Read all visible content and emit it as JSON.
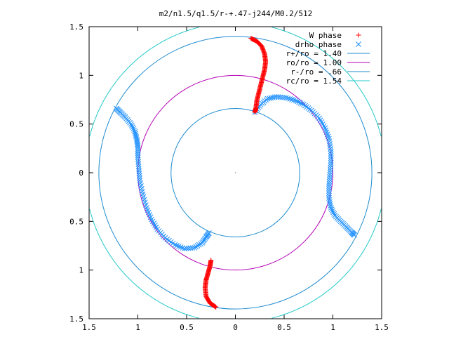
{
  "chart_data": {
    "type": "scatter",
    "title": "m2/n1.5/q1.5/r-+.47-j244/M0.2/512",
    "xlabel": "",
    "ylabel": "",
    "xlim": [
      -1.5,
      1.5
    ],
    "ylim": [
      -1.5,
      1.5
    ],
    "x_tick_labels": [
      "1.5",
      "1",
      "0.5",
      "0",
      "0.5",
      "1",
      "1.5"
    ],
    "y_tick_labels": [
      "1.5",
      "1",
      "0.5",
      "0",
      "0.5",
      "1",
      "1.5"
    ],
    "grid": false,
    "legend_position": "top-right",
    "circles": [
      {
        "name": "r+/ro = 1.40",
        "radius": 1.4,
        "color": "#1f8ccf"
      },
      {
        "name": "ro/ro = 1.00",
        "radius": 1.0,
        "color": "#b400b4"
      },
      {
        "name": "r-/ro = .66",
        "radius": 0.66,
        "color": "#1f8ccf"
      },
      {
        "name": "rc/ro = 1.54",
        "radius": 1.54,
        "color": "#22c8c8"
      }
    ],
    "series": [
      {
        "name": "W phase",
        "marker": "plus",
        "color": "#ff0000",
        "arms": [
          [
            [
              0.16,
              1.38
            ],
            [
              0.22,
              1.35
            ],
            [
              0.27,
              1.3
            ],
            [
              0.3,
              1.22
            ],
            [
              0.31,
              1.14
            ],
            [
              0.3,
              1.06
            ],
            [
              0.28,
              0.98
            ],
            [
              0.26,
              0.9
            ],
            [
              0.24,
              0.82
            ],
            [
              0.22,
              0.74
            ],
            [
              0.21,
              0.66
            ],
            [
              0.2,
              0.62
            ]
          ],
          [
            [
              -0.2,
              -1.38
            ],
            [
              -0.26,
              -1.34
            ],
            [
              -0.3,
              -1.27
            ],
            [
              -0.31,
              -1.18
            ],
            [
              -0.3,
              -1.1
            ],
            [
              -0.28,
              -1.03
            ],
            [
              -0.26,
              -0.96
            ],
            [
              -0.25,
              -0.9
            ]
          ]
        ]
      },
      {
        "name": "drho phase",
        "marker": "cross",
        "color": "#1e90ff",
        "arms": [
          [
            [
              0.2,
              0.62
            ],
            [
              0.26,
              0.7
            ],
            [
              0.33,
              0.76
            ],
            [
              0.42,
              0.78
            ],
            [
              0.52,
              0.77
            ],
            [
              0.62,
              0.74
            ],
            [
              0.7,
              0.7
            ],
            [
              0.78,
              0.64
            ],
            [
              0.86,
              0.56
            ],
            [
              0.92,
              0.46
            ],
            [
              0.96,
              0.35
            ],
            [
              0.98,
              0.22
            ],
            [
              0.98,
              0.1
            ],
            [
              0.97,
              -0.02
            ],
            [
              0.96,
              -0.14
            ],
            [
              0.96,
              -0.26
            ],
            [
              0.98,
              -0.36
            ],
            [
              1.02,
              -0.44
            ],
            [
              1.08,
              -0.5
            ],
            [
              1.14,
              -0.56
            ],
            [
              1.19,
              -0.61
            ],
            [
              1.22,
              -0.64
            ]
          ],
          [
            [
              -1.22,
              0.66
            ],
            [
              -1.18,
              0.62
            ],
            [
              -1.13,
              0.57
            ],
            [
              -1.07,
              0.5
            ],
            [
              -1.03,
              0.42
            ],
            [
              -1.01,
              0.34
            ],
            [
              -1.0,
              0.26
            ],
            [
              -1.0,
              0.16
            ],
            [
              -0.99,
              0.04
            ],
            [
              -0.98,
              -0.08
            ],
            [
              -0.95,
              -0.22
            ],
            [
              -0.91,
              -0.36
            ],
            [
              -0.86,
              -0.48
            ],
            [
              -0.8,
              -0.58
            ],
            [
              -0.72,
              -0.67
            ],
            [
              -0.62,
              -0.74
            ],
            [
              -0.52,
              -0.78
            ],
            [
              -0.42,
              -0.77
            ],
            [
              -0.34,
              -0.72
            ],
            [
              -0.3,
              -0.66
            ],
            [
              -0.27,
              -0.62
            ]
          ]
        ]
      }
    ]
  }
}
